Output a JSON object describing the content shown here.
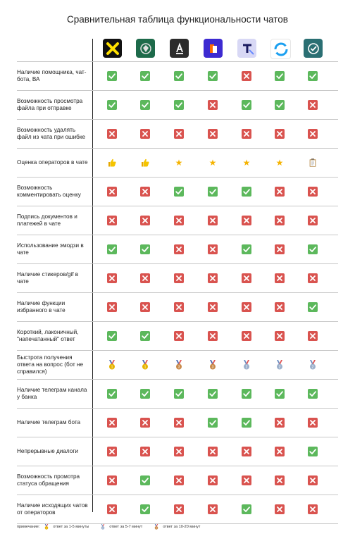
{
  "title": "Сравнительная таблица функциональности чатов",
  "colors": {
    "ok": "#5cb85c",
    "no": "#d9534f",
    "star": "#f5b301"
  },
  "logos": [
    {
      "name": "raiffeisen-logo",
      "bg": "#111111",
      "fg": "#ffe100"
    },
    {
      "name": "bank-emblem-logo",
      "bg": "#1d6a4a",
      "fg": "#e0e0e0"
    },
    {
      "name": "alfa-logo",
      "bg": "#2b2b2b",
      "fg": "#ffffff",
      "text": "А"
    },
    {
      "name": "otkritie-logo",
      "bg": "#3d2ad1",
      "fg": "#ff6a00"
    },
    {
      "name": "tinkoff-logo",
      "bg": "#d8d8f5",
      "fg": "#1a1a60",
      "text": "т"
    },
    {
      "name": "vtb-logo",
      "bg": "#ffffff",
      "fg": "#1a9ff0"
    },
    {
      "name": "check-logo",
      "bg": "#2a6f73",
      "fg": "#ffffff"
    }
  ],
  "rows": [
    {
      "label": "Наличие помощника, чат-бота, ВА",
      "cells": [
        "ok",
        "ok",
        "ok",
        "ok",
        "no",
        "ok",
        "ok"
      ]
    },
    {
      "label": "Возможность просмотра файла при отправке",
      "cells": [
        "ok",
        "ok",
        "ok",
        "no",
        "ok",
        "ok",
        "no"
      ]
    },
    {
      "label": "Возможность удалять файл из чата при ошибке",
      "cells": [
        "no",
        "no",
        "no",
        "no",
        "no",
        "no",
        "no"
      ]
    },
    {
      "label": "Оценка операторов в чате",
      "cells": [
        "thumb",
        "thumb",
        "star",
        "star",
        "star",
        "star",
        "clip"
      ]
    },
    {
      "label": "Возможность комментировать оценку",
      "cells": [
        "no",
        "no",
        "ok",
        "ok",
        "ok",
        "no",
        "no"
      ]
    },
    {
      "label": "Подпись документов и платежей в чате",
      "cells": [
        "no",
        "no",
        "no",
        "no",
        "no",
        "no",
        "no"
      ]
    },
    {
      "label": "Использование эмодзи в чате",
      "cells": [
        "ok",
        "ok",
        "no",
        "no",
        "ok",
        "no",
        "ok"
      ]
    },
    {
      "label": "Наличие стикеров/gif в чате",
      "cells": [
        "no",
        "no",
        "no",
        "no",
        "no",
        "no",
        "no"
      ]
    },
    {
      "label": "Наличие функции избранного в чате",
      "cells": [
        "no",
        "no",
        "no",
        "no",
        "no",
        "no",
        "ok"
      ]
    },
    {
      "label": "Короткий, лаконичный, \"напечатанный\" ответ",
      "cells": [
        "ok",
        "ok",
        "no",
        "no",
        "no",
        "no",
        "no"
      ]
    },
    {
      "label": "Быстрота  получения ответа на вопрос (бот не справился)",
      "cells": [
        "m1",
        "m1",
        "m3",
        "m3",
        "m2",
        "m2",
        "m2"
      ]
    },
    {
      "label": "Наличие телеграм канала у банка",
      "cells": [
        "ok",
        "ok",
        "ok",
        "ok",
        "ok",
        "ok",
        "ok"
      ]
    },
    {
      "label": "Наличие телеграм бота",
      "cells": [
        "no",
        "no",
        "no",
        "ok",
        "ok",
        "no",
        "no"
      ]
    },
    {
      "label": "Непрерывные диалоги",
      "cells": [
        "no",
        "no",
        "no",
        "no",
        "no",
        "no",
        "ok"
      ]
    },
    {
      "label": "Возможность промотра статуса обращения",
      "cells": [
        "no",
        "ok",
        "no",
        "no",
        "no",
        "no",
        "no"
      ]
    },
    {
      "label": "Наличие исходящих чатов от операторов",
      "cells": [
        "no",
        "ok",
        "no",
        "no",
        "ok",
        "no",
        "no"
      ]
    }
  ],
  "footer": {
    "note": "примечание:",
    "legend": [
      "ответ за 1-5 минуты",
      "ответ за 5-7 минут",
      "ответ за 10-20 минут"
    ]
  }
}
